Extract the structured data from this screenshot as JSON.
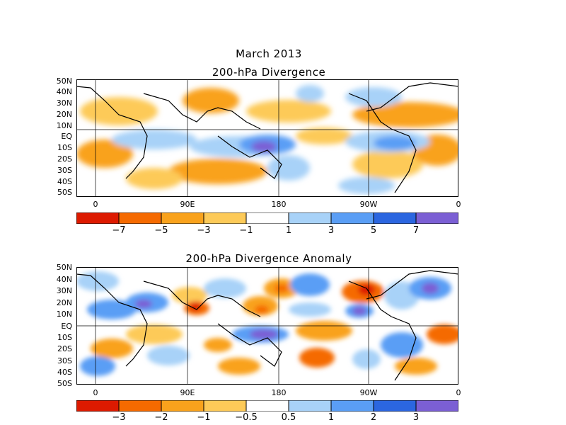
{
  "title": "March 2013",
  "panels": [
    {
      "id": "divergence",
      "title": "200-hPa Divergence",
      "lat_labels": [
        "50N",
        "40N",
        "30N",
        "20N",
        "10N",
        "EQ",
        "10S",
        "20S",
        "30S",
        "40S",
        "50S"
      ],
      "lon_labels": [
        "0",
        "90E",
        "180",
        "90W",
        "0"
      ],
      "colorbar": {
        "labels": [
          "−7",
          "−5",
          "−3",
          "−1",
          "1",
          "3",
          "5",
          "7"
        ],
        "colors": [
          "#dd1a00",
          "#f56a00",
          "#f9a21c",
          "#fdca58",
          "#ffffff",
          "#a8d2f8",
          "#5a9ef5",
          "#2b66e0",
          "#7b5fd4"
        ]
      }
    },
    {
      "id": "anomaly",
      "title": "200-hPa Divergence Anomaly",
      "lat_labels": [
        "50N",
        "40N",
        "30N",
        "20N",
        "10N",
        "EQ",
        "10S",
        "20S",
        "30S",
        "40S",
        "50S"
      ],
      "lon_labels": [
        "0",
        "90E",
        "180",
        "90W",
        "0"
      ],
      "colorbar": {
        "labels": [
          "−3",
          "−2",
          "−1",
          "−0.5",
          "0.5",
          "1",
          "2",
          "3"
        ],
        "colors": [
          "#dd1a00",
          "#f56a00",
          "#f9a21c",
          "#fdca58",
          "#ffffff",
          "#a8d2f8",
          "#5a9ef5",
          "#2b66e0",
          "#7b5fd4"
        ]
      }
    }
  ]
}
